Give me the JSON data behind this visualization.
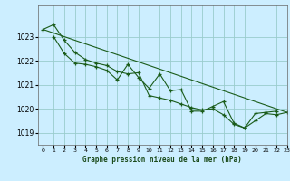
{
  "background_color": "#cceeff",
  "grid_color": "#99cccc",
  "line_color": "#1a5c1a",
  "title": "Graphe pression niveau de la mer (hPa)",
  "xlim": [
    -0.5,
    23
  ],
  "ylim": [
    1018.5,
    1024.3
  ],
  "yticks": [
    1019,
    1020,
    1021,
    1022,
    1023
  ],
  "xticks": [
    0,
    1,
    2,
    3,
    4,
    5,
    6,
    7,
    8,
    9,
    10,
    11,
    12,
    13,
    14,
    15,
    16,
    17,
    18,
    19,
    20,
    21,
    22,
    23
  ],
  "series": [
    {
      "x": [
        0,
        1,
        2,
        3,
        4,
        5,
        6,
        7,
        8,
        9,
        10,
        11,
        12,
        13,
        14,
        15,
        16,
        17,
        18,
        19,
        20,
        21,
        22,
        23
      ],
      "y": [
        1023.3,
        1023.5,
        1022.85,
        1022.35,
        1022.05,
        1021.9,
        1021.8,
        1021.55,
        1021.45,
        1021.5,
        1020.55,
        1020.45,
        1020.35,
        1020.2,
        1020.05,
        1019.95,
        1020.0,
        1019.75,
        1019.35,
        1019.2,
        1019.5,
        1019.8,
        1019.75,
        1019.85
      ],
      "has_markers": true
    },
    {
      "x": [
        0,
        23
      ],
      "y": [
        1023.3,
        1019.85
      ],
      "has_markers": false
    },
    {
      "x": [
        1,
        2,
        3,
        4,
        5,
        6,
        7,
        8,
        9,
        10,
        11,
        12,
        13,
        14,
        15,
        16,
        17,
        18,
        19,
        20,
        21,
        22
      ],
      "y": [
        1023.0,
        1022.3,
        1021.9,
        1021.85,
        1021.75,
        1021.6,
        1021.2,
        1021.85,
        1021.3,
        1020.85,
        1021.45,
        1020.75,
        1020.8,
        1019.9,
        1019.9,
        1020.1,
        1020.3,
        1019.4,
        1019.2,
        1019.8,
        1019.85,
        1019.9
      ],
      "has_markers": true
    }
  ]
}
